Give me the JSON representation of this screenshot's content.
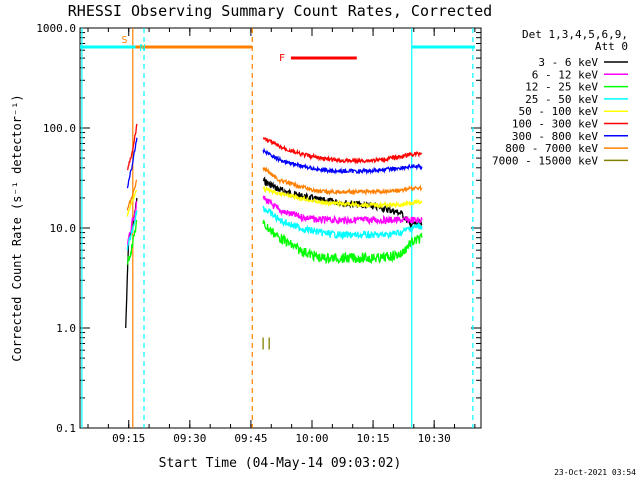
{
  "chart_data": {
    "type": "line",
    "title": "RHESSI Observing Summary Count Rates, Corrected",
    "xlabel": "Start Time (04-May-14 09:03:02)",
    "ylabel": "Corrected Count Rate (s⁻¹ detector⁻¹)",
    "y_scale": "log",
    "ylim": [
      0.1,
      1000
    ],
    "xlim": [
      "09:03:02",
      "10:41:30"
    ],
    "x_ticks": [
      "09:15",
      "09:30",
      "09:45",
      "10:00",
      "10:15",
      "10:30"
    ],
    "y_ticks": [
      "0.1",
      "1.0",
      "10.0",
      "100.0",
      "1000.0"
    ],
    "legend_header": [
      "Det 1,3,4,5,6,9,",
      "Att 0"
    ],
    "legend_position": "right",
    "timestamp": "23-Oct-2021 03:54",
    "series": [
      {
        "name": "3 - 6 keV",
        "color": "#000000",
        "x": [
          "09:14:15",
          "09:15:00",
          "09:16:00",
          "09:17:00",
          "09:48:00",
          "09:52:00",
          "09:57:00",
          "10:02:00",
          "10:07:00",
          "10:12:00",
          "10:17:00",
          "10:22:00",
          "10:24:00",
          "10:27:00"
        ],
        "values": [
          1.0,
          8.0,
          10.0,
          20.0,
          30.0,
          24.0,
          21.0,
          19.0,
          18.0,
          17.0,
          16.0,
          14.0,
          11.0,
          11.0
        ]
      },
      {
        "name": "6 - 12 keV",
        "color": "#ff00ff",
        "x": [
          "09:14:40",
          "09:15:00",
          "09:16:00",
          "09:17:00",
          "09:48:00",
          "09:52:00",
          "09:57:00",
          "10:02:00",
          "10:07:00",
          "10:12:00",
          "10:17:00",
          "10:22:00",
          "10:24:00",
          "10:27:00"
        ],
        "values": [
          6.0,
          8.0,
          12.0,
          18.0,
          20.0,
          15.0,
          13.0,
          12.0,
          12.0,
          12.0,
          12.0,
          12.0,
          12.0,
          12.0
        ]
      },
      {
        "name": "12 - 25 keV",
        "color": "#00ff00",
        "x": [
          "09:14:40",
          "09:15:00",
          "09:16:00",
          "09:17:00",
          "09:48:00",
          "09:52:00",
          "09:57:00",
          "10:02:00",
          "10:07:00",
          "10:12:00",
          "10:17:00",
          "10:22:00",
          "10:24:00",
          "10:27:00"
        ],
        "values": [
          4.5,
          5.0,
          7.0,
          12.0,
          11.0,
          8.0,
          6.0,
          5.0,
          5.0,
          5.0,
          5.0,
          5.5,
          7.0,
          8.0
        ]
      },
      {
        "name": "25 - 50 keV",
        "color": "#00ffff",
        "x": [
          "09:14:40",
          "09:15:00",
          "09:16:00",
          "09:17:00",
          "09:48:00",
          "09:52:00",
          "09:57:00",
          "10:02:00",
          "10:07:00",
          "10:12:00",
          "10:17:00",
          "10:22:00",
          "10:24:00",
          "10:27:00"
        ],
        "values": [
          6.0,
          7.0,
          10.0,
          15.0,
          16.0,
          12.0,
          10.0,
          9.0,
          8.5,
          8.5,
          8.5,
          9.0,
          10.0,
          10.5
        ]
      },
      {
        "name": "50 - 100 keV",
        "color": "#ffff00",
        "x": [
          "09:14:40",
          "09:15:00",
          "09:16:00",
          "09:17:00",
          "09:48:00",
          "09:52:00",
          "09:57:00",
          "10:02:00",
          "10:07:00",
          "10:12:00",
          "10:17:00",
          "10:22:00",
          "10:24:00",
          "10:27:00"
        ],
        "values": [
          13.0,
          15.0,
          19.0,
          24.0,
          25.0,
          22.0,
          20.0,
          18.0,
          17.5,
          17.0,
          17.0,
          17.0,
          18.0,
          18.0
        ]
      },
      {
        "name": "100 - 300 keV",
        "color": "#ff0000",
        "x": [
          "09:14:40",
          "09:15:00",
          "09:16:00",
          "09:17:00",
          "09:48:00",
          "09:52:00",
          "09:57:00",
          "10:02:00",
          "10:07:00",
          "10:12:00",
          "10:17:00",
          "10:22:00",
          "10:24:00",
          "10:27:00"
        ],
        "values": [
          38.0,
          42.0,
          60.0,
          110.0,
          80.0,
          65.0,
          55.0,
          50.0,
          47.0,
          47.0,
          48.0,
          52.0,
          54.0,
          56.0
        ]
      },
      {
        "name": "300 - 800 keV",
        "color": "#0000ff",
        "x": [
          "09:14:40",
          "09:15:00",
          "09:16:00",
          "09:17:00",
          "09:48:00",
          "09:52:00",
          "09:57:00",
          "10:02:00",
          "10:07:00",
          "10:12:00",
          "10:17:00",
          "10:22:00",
          "10:24:00",
          "10:27:00"
        ],
        "values": [
          25.0,
          30.0,
          45.0,
          80.0,
          60.0,
          48.0,
          42.0,
          38.0,
          37.0,
          37.0,
          38.0,
          40.0,
          41.0,
          41.0
        ]
      },
      {
        "name": "800 - 7000 keV",
        "color": "#ff8000",
        "x": [
          "09:14:40",
          "09:15:00",
          "09:16:00",
          "09:17:00",
          "09:48:00",
          "09:52:00",
          "09:57:00",
          "10:02:00",
          "10:07:00",
          "10:12:00",
          "10:17:00",
          "10:22:00",
          "10:24:00",
          "10:27:00"
        ],
        "values": [
          15.0,
          17.0,
          22.0,
          30.0,
          40.0,
          30.0,
          26.0,
          23.0,
          23.0,
          23.0,
          23.0,
          24.0,
          25.0,
          25.0
        ]
      },
      {
        "name": "7000 - 15000 keV",
        "color": "#808000",
        "x": [
          "09:48:00",
          "09:49:30"
        ],
        "values": [
          0.7,
          0.7
        ]
      }
    ],
    "flags": [
      {
        "label": "S",
        "color": "#ff8000",
        "start": "09:16:10",
        "end": "09:45:20"
      },
      {
        "label": "N",
        "color": "#00ffff",
        "start": "09:03:02",
        "end": "09:16:40"
      },
      {
        "label": "",
        "color": "#00ffff",
        "start": "10:24:30",
        "end": "10:40:00"
      },
      {
        "label": "F",
        "color": "#ff0000",
        "start": "09:54:50",
        "end": "10:11:00"
      }
    ],
    "vlines": [
      {
        "x": "09:03:30",
        "color": "#00ffff",
        "style": "solid"
      },
      {
        "x": "09:16:00",
        "color": "#ff8000",
        "style": "solid"
      },
      {
        "x": "09:18:45",
        "color": "#00ffff",
        "style": "dashed"
      },
      {
        "x": "09:45:20",
        "color": "#ff8000",
        "style": "dashed"
      },
      {
        "x": "10:24:30",
        "color": "#00ffff",
        "style": "solid"
      },
      {
        "x": "10:39:30",
        "color": "#00ffff",
        "style": "dashed"
      }
    ]
  }
}
